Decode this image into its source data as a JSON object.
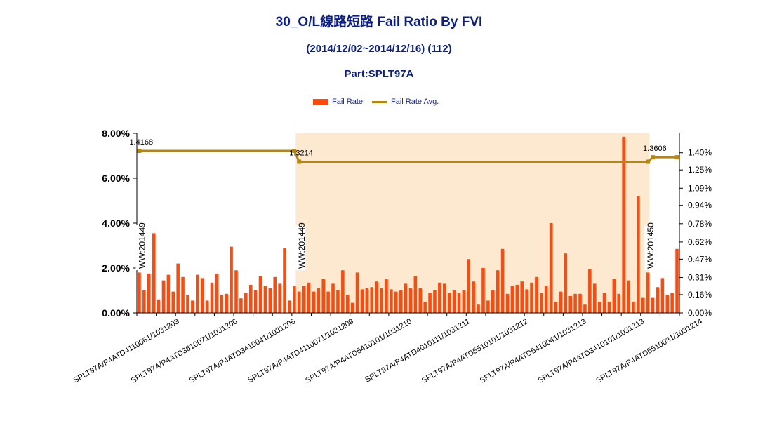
{
  "header": {
    "title": "30_O/L線路短路 Fail Ratio By FVI",
    "subtitle": "(2014/12/02~2014/12/16) (112)",
    "part": "Part:SPLT97A"
  },
  "legend": {
    "bar_label": "Fail Rate",
    "line_label": "Fail Rate Avg."
  },
  "colors": {
    "bar": "#ff4a0e",
    "avg_line": "#b8860b",
    "highlight": "#fde9cf",
    "title": "#0b1e8c"
  },
  "chart_data": {
    "type": "bar",
    "left_axis": {
      "ylim": [
        0,
        8
      ],
      "ticks": [
        "0.00%",
        "2.00%",
        "4.00%",
        "6.00%",
        "8.00%"
      ],
      "tick_values": [
        0,
        2,
        4,
        6,
        8
      ]
    },
    "right_axis": {
      "ylim": [
        0,
        1.57
      ],
      "ticks": [
        "0.00%",
        "0.16%",
        "0.31%",
        "0.47%",
        "0.62%",
        "0.78%",
        "0.94%",
        "1.09%",
        "1.25%",
        "1.40%"
      ],
      "tick_values": [
        0,
        0.16,
        0.31,
        0.47,
        0.62,
        0.78,
        0.94,
        1.09,
        1.25,
        1.4
      ]
    },
    "x_labels": [
      "SPLT97A/P4ATD4110061/1031203",
      "SPLT97A/P4ATD3610071/1031206",
      "SPLT97A/P4ATD3410041/1031206",
      "SPLT97A/P4ATD4110071/1031209",
      "SPLT97A/P4ATD5410101/1031210",
      "SPLT97A/P4ATD4010111/1031211",
      "SPLT97A/P4ATD5510101/1031212",
      "SPLT97A/P4ATD5410041/1031213",
      "SPLT97A/P4ATD3410101/1031213",
      "SPLT97A/P4ATD5510031/1031214"
    ],
    "x_label_bar_index": [
      10,
      22,
      34,
      46,
      58,
      70,
      82,
      94,
      106,
      118
    ],
    "series": [
      {
        "name": "Fail Rate",
        "values": [
          1.8,
          1.0,
          1.75,
          3.55,
          0.6,
          1.45,
          1.7,
          0.95,
          2.2,
          1.6,
          0.8,
          0.55,
          1.7,
          1.55,
          0.55,
          1.35,
          1.75,
          0.8,
          0.85,
          2.95,
          1.9,
          0.65,
          0.9,
          1.25,
          1.0,
          1.65,
          1.2,
          1.1,
          1.6,
          1.3,
          2.9,
          0.55,
          1.2,
          0.95,
          1.2,
          1.35,
          0.95,
          1.1,
          1.5,
          0.95,
          1.3,
          1.0,
          1.9,
          0.8,
          0.45,
          1.8,
          1.05,
          1.1,
          1.15,
          1.4,
          1.1,
          1.5,
          1.05,
          0.95,
          1.0,
          1.3,
          1.1,
          1.65,
          1.1,
          0.5,
          0.9,
          1.0,
          1.35,
          1.3,
          0.9,
          1.0,
          0.9,
          1.0,
          2.4,
          1.4,
          0.4,
          2.0,
          0.55,
          1.0,
          1.9,
          2.85,
          0.85,
          1.2,
          1.25,
          1.4,
          1.05,
          1.35,
          1.6,
          0.9,
          1.2,
          4.0,
          0.5,
          0.95,
          2.65,
          0.75,
          0.85,
          0.85,
          0.4,
          1.95,
          1.3,
          0.5,
          0.9,
          0.5,
          1.5,
          0.85,
          7.85,
          1.45,
          0.5,
          5.2,
          0.7,
          1.8,
          0.7,
          1.15,
          1.55,
          0.8,
          0.9,
          2.85
        ]
      },
      {
        "name": "Fail Rate Avg.",
        "segments": [
          {
            "from_bar": 0,
            "to_bar": 32,
            "value": 1.4168
          },
          {
            "from_bar": 33,
            "to_bar": 105,
            "value": 1.3214
          },
          {
            "from_bar": 106,
            "to_bar": 111,
            "value": 1.3606
          }
        ]
      }
    ],
    "avg_labels": [
      {
        "text": "1.4168",
        "bar": 0
      },
      {
        "text": "1.3214",
        "bar": 33
      },
      {
        "text": "1.3606",
        "bar": 106
      }
    ],
    "week_markers": [
      {
        "text": "WW:201449",
        "bar": 0
      },
      {
        "text": "WW:201449",
        "bar": 33
      },
      {
        "text": "WW:201450",
        "bar": 105
      }
    ],
    "highlight_range_bars": [
      32,
      105
    ]
  }
}
